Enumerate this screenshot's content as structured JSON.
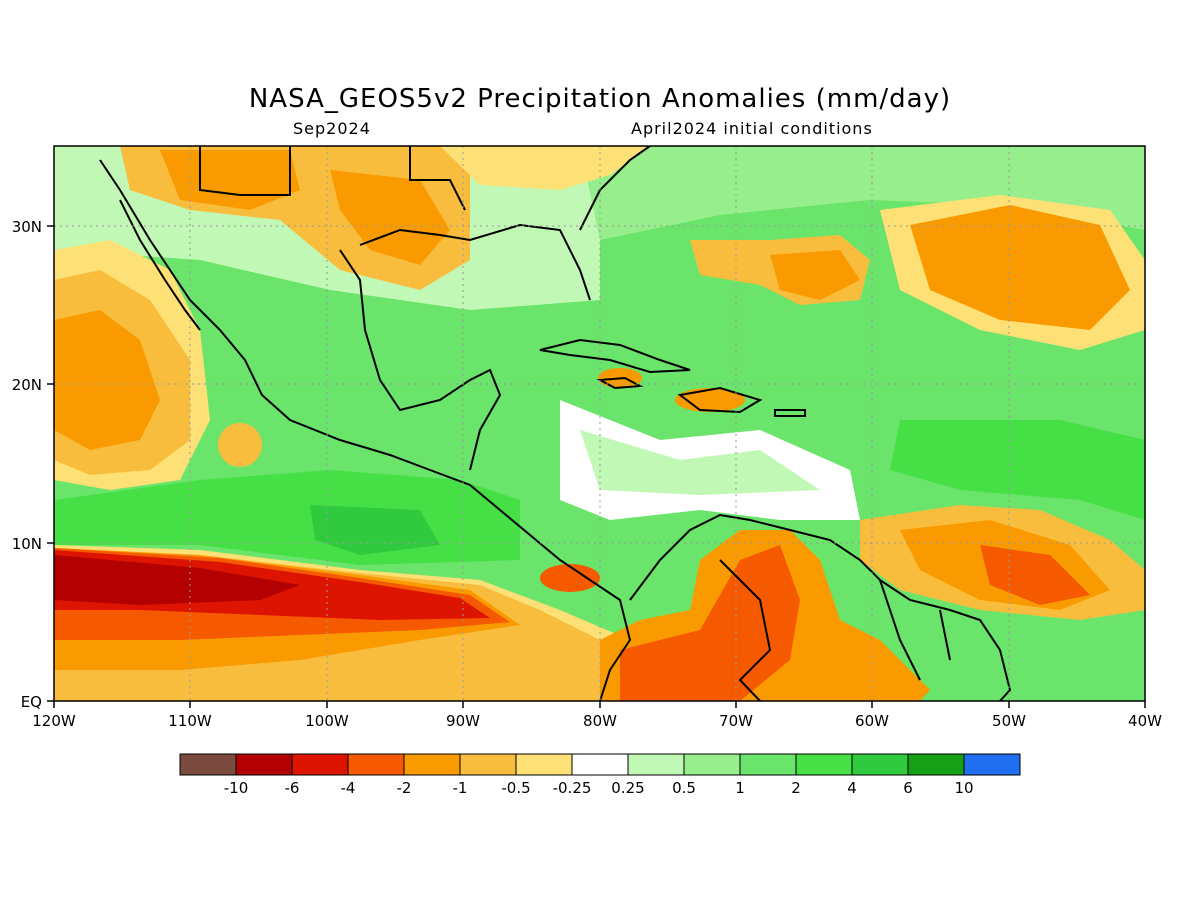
{
  "header": {
    "title": "NASA_GEOS5v2 Precipitation Anomalies (mm/day)",
    "valid_month": "Sep2024",
    "init_conditions": "April2024 initial conditions"
  },
  "axes": {
    "lon_labels": [
      "120W",
      "110W",
      "100W",
      "90W",
      "80W",
      "70W",
      "60W",
      "50W",
      "40W"
    ],
    "lat_labels": [
      "EQ",
      "10N",
      "20N",
      "30N"
    ],
    "lon_range": [
      -120,
      -40
    ],
    "lat_range": [
      0,
      35
    ],
    "grid": "dotted at 10° intervals"
  },
  "legend": {
    "colors": [
      "#7a4a3f",
      "#b30000",
      "#dd1500",
      "#f55a00",
      "#f99b00",
      "#f9bd3d",
      "#fde176",
      "#ffffff",
      "#c2f8b5",
      "#97ee8c",
      "#6ae46a",
      "#46e046",
      "#2fca3d",
      "#15a015",
      "#206ff0"
    ],
    "tick_labels": [
      "-10",
      "-6",
      "-4",
      "-2",
      "-1",
      "-0.5",
      "-0.25",
      "0.25",
      "0.5",
      "1",
      "2",
      "4",
      "6",
      "10"
    ]
  },
  "colors": {
    "land_outline": "#000000",
    "default_field": "#6ae46a"
  }
}
